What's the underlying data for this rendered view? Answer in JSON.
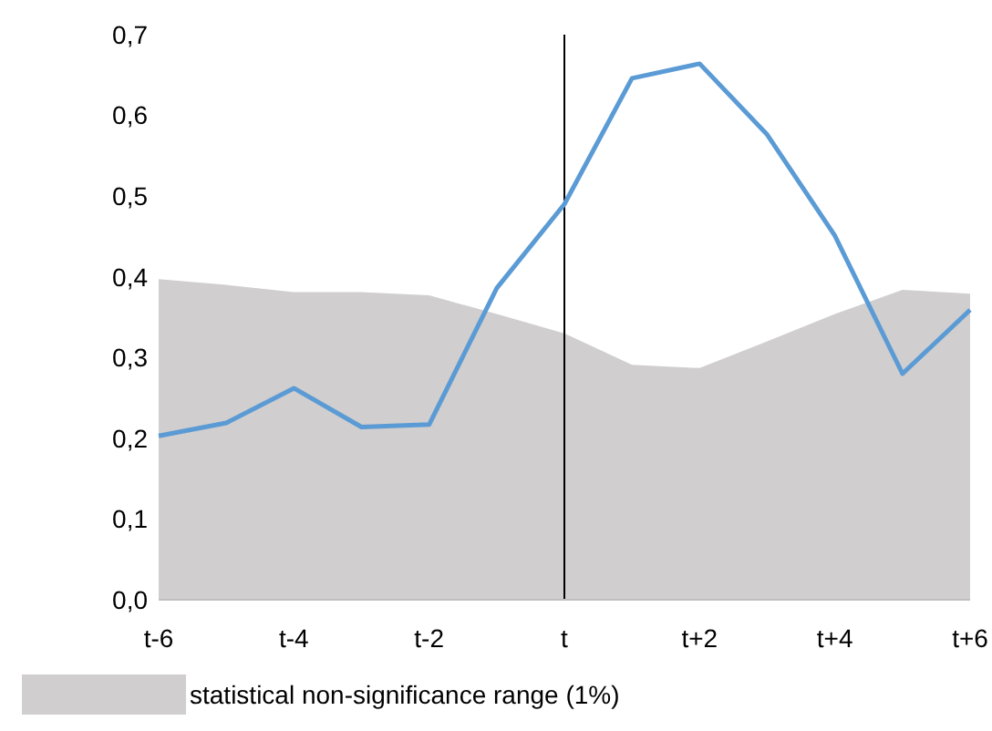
{
  "chart_data": {
    "type": "line",
    "categories": [
      "t-6",
      null,
      "t-4",
      null,
      "t-2",
      null,
      "t",
      null,
      "t+2",
      null,
      "t+4",
      null,
      "t+6"
    ],
    "series": [
      {
        "type": "area",
        "name": "statistical non-significance range (1%)",
        "color": "#d0cece",
        "values": [
          0.397,
          0.39,
          0.381,
          0.381,
          0.377,
          0.354,
          0.33,
          0.291,
          0.287,
          0.32,
          0.354,
          0.384,
          0.379
        ]
      },
      {
        "color": "#5b9bd5",
        "values": [
          0.203,
          0.219,
          0.262,
          0.214,
          0.217,
          0.386,
          0.49,
          0.646,
          0.664,
          0.576,
          0.451,
          0.28,
          0.359
        ]
      }
    ],
    "ylim": [
      0,
      0.7
    ],
    "yticks": [
      {
        "value": 0,
        "label": "0,0"
      },
      {
        "value": 0.1,
        "label": "0,1"
      },
      {
        "value": 0.2,
        "label": "0,2"
      },
      {
        "value": 0.3,
        "label": "0,3"
      },
      {
        "value": 0.4,
        "label": "0,4"
      },
      {
        "value": 0.5,
        "label": "0,5"
      },
      {
        "value": 0.6,
        "label": "0,6"
      },
      {
        "value": 0.7,
        "label": "0,7"
      }
    ],
    "ref_lines": [
      {
        "axis": "x",
        "value": "t",
        "color": "#000000"
      }
    ],
    "legend": "bottom left",
    "grid": false
  }
}
